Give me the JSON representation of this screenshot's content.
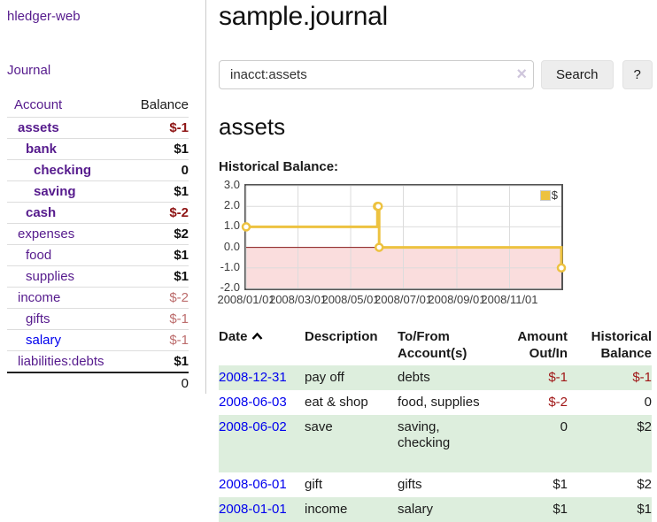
{
  "brand": "hledger-web",
  "nav": {
    "journal": "Journal"
  },
  "sidebar": {
    "columns": {
      "account": "Account",
      "balance": "Balance"
    },
    "accounts": [
      {
        "name": "assets",
        "depth": 1,
        "bold": true,
        "balance": "$-1",
        "balance_class": "neg-strong",
        "link_style": "visited"
      },
      {
        "name": "bank",
        "depth": 2,
        "bold": true,
        "balance": "$1",
        "balance_class": "pos",
        "link_style": "visited"
      },
      {
        "name": "checking",
        "depth": 3,
        "bold": true,
        "balance": "0",
        "balance_class": "pos",
        "link_style": "visited"
      },
      {
        "name": "saving",
        "depth": 3,
        "bold": true,
        "balance": "$1",
        "balance_class": "pos",
        "link_style": "visited"
      },
      {
        "name": "cash",
        "depth": 2,
        "bold": true,
        "balance": "$-2",
        "balance_class": "neg-strong",
        "link_style": "visited"
      },
      {
        "name": "expenses",
        "depth": 1,
        "bold": false,
        "balance": "$2",
        "balance_class": "pos",
        "link_style": "visited"
      },
      {
        "name": "food",
        "depth": 2,
        "bold": false,
        "balance": "$1",
        "balance_class": "pos",
        "link_style": "visited"
      },
      {
        "name": "supplies",
        "depth": 2,
        "bold": false,
        "balance": "$1",
        "balance_class": "pos",
        "link_style": "visited"
      },
      {
        "name": "income",
        "depth": 1,
        "bold": false,
        "balance": "$-2",
        "balance_class": "neg-soft",
        "link_style": "visited"
      },
      {
        "name": "gifts",
        "depth": 2,
        "bold": false,
        "balance": "$-1",
        "balance_class": "neg-soft",
        "link_style": "visited"
      },
      {
        "name": "salary",
        "depth": 2,
        "bold": false,
        "balance": "$-1",
        "balance_class": "neg-soft",
        "link_style": "unvisited"
      },
      {
        "name": "liabilities:debts",
        "depth": 1,
        "bold": false,
        "balance": "$1",
        "balance_class": "pos",
        "link_style": "visited"
      }
    ],
    "total": "0"
  },
  "header": {
    "title": "sample.journal"
  },
  "search": {
    "value": "inacct:assets",
    "clear_icon": "×",
    "button": "Search",
    "help_button": "?"
  },
  "page": {
    "heading": "assets",
    "chart_label": "Historical Balance:"
  },
  "chart_data": {
    "type": "line",
    "title": "Historical Balance:",
    "step": true,
    "xlim": [
      0,
      365
    ],
    "ylim": [
      -2,
      3
    ],
    "grid": true,
    "legend_position": "top-right",
    "xticks": [
      {
        "x": 0,
        "label": "2008/01/01"
      },
      {
        "x": 60,
        "label": "2008/03/01"
      },
      {
        "x": 121,
        "label": "2008/05/01"
      },
      {
        "x": 182,
        "label": "2008/07/01"
      },
      {
        "x": 244,
        "label": "2008/09/01"
      },
      {
        "x": 305,
        "label": "2008/11/01"
      }
    ],
    "yticks": [
      3,
      2,
      1,
      0,
      -1,
      -2
    ],
    "series": [
      {
        "name": "$",
        "color": "#edc240",
        "points": [
          {
            "date": "2008-01-01",
            "x": 0,
            "y": 1
          },
          {
            "date": "2008-06-01",
            "x": 152,
            "y": 2
          },
          {
            "date": "2008-06-02",
            "x": 153,
            "y": 2
          },
          {
            "date": "2008-06-03",
            "x": 154,
            "y": 0
          },
          {
            "date": "2008-12-31",
            "x": 365,
            "y": -1
          }
        ]
      }
    ],
    "styles": {
      "negative_fill": "#fadddd",
      "zero_line": "#8b1a1a",
      "grid_color": "#dcdcdc",
      "border_color": "#545454",
      "marker_fill": "#ffffff"
    }
  },
  "register": {
    "columns": {
      "date": "Date",
      "description": "Description",
      "tofrom": "To/From Account(s)",
      "amount": "Amount Out/In",
      "balance": "Historical Balance"
    },
    "rows": [
      {
        "date": "2008-12-31",
        "description": "pay off",
        "accounts": "debts",
        "amount": "$-1",
        "amount_neg": true,
        "balance": "$-1",
        "balance_neg": true,
        "tall": false
      },
      {
        "date": "2008-06-03",
        "description": "eat & shop",
        "accounts": "food, supplies",
        "amount": "$-2",
        "amount_neg": true,
        "balance": "0",
        "balance_neg": false,
        "tall": false
      },
      {
        "date": "2008-06-02",
        "description": "save",
        "accounts": "saving, checking",
        "amount": "0",
        "amount_neg": false,
        "balance": "$2",
        "balance_neg": false,
        "tall": true
      },
      {
        "date": "2008-06-01",
        "description": "gift",
        "accounts": "gifts",
        "amount": "$1",
        "amount_neg": false,
        "balance": "$2",
        "balance_neg": false,
        "tall": false
      },
      {
        "date": "2008-01-01",
        "description": "income",
        "accounts": "salary",
        "amount": "$1",
        "amount_neg": false,
        "balance": "$1",
        "balance_neg": false,
        "tall": false
      }
    ]
  }
}
